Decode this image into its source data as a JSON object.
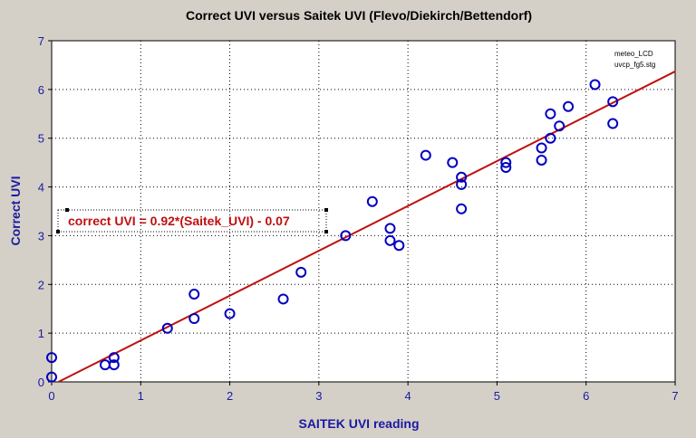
{
  "chart_data": {
    "type": "scatter",
    "title": "Correct UVI versus Saitek UVI (Flevo/Diekirch/Bettendorf)",
    "xlabel": "SAITEK UVI reading",
    "ylabel": "Correct UVI",
    "xlim": [
      0,
      7
    ],
    "ylim": [
      0,
      7
    ],
    "xticks": [
      "0",
      "1",
      "2",
      "3",
      "4",
      "5",
      "6",
      "7"
    ],
    "yticks": [
      "0",
      "1",
      "2",
      "3",
      "4",
      "5",
      "6",
      "7"
    ],
    "grid": true,
    "notes": [
      "meteo_LCD",
      "uvcp_fg5.stg"
    ],
    "equation": "correct UVI = 0.92*(Saitek_UVI) - 0.07",
    "fit": {
      "slope": 0.92,
      "intercept": -0.07
    },
    "marker_color": "#0000c0",
    "line_color": "#c01010",
    "points": [
      {
        "x": 0.0,
        "y": 0.1
      },
      {
        "x": 0.0,
        "y": 0.5
      },
      {
        "x": 0.6,
        "y": 0.35
      },
      {
        "x": 0.7,
        "y": 0.35
      },
      {
        "x": 0.7,
        "y": 0.5
      },
      {
        "x": 1.3,
        "y": 1.1
      },
      {
        "x": 1.6,
        "y": 1.3
      },
      {
        "x": 1.6,
        "y": 1.8
      },
      {
        "x": 2.0,
        "y": 1.4
      },
      {
        "x": 2.6,
        "y": 1.7
      },
      {
        "x": 2.8,
        "y": 2.25
      },
      {
        "x": 3.3,
        "y": 3.0
      },
      {
        "x": 3.6,
        "y": 3.7
      },
      {
        "x": 3.8,
        "y": 3.15
      },
      {
        "x": 3.8,
        "y": 2.9
      },
      {
        "x": 3.9,
        "y": 2.8
      },
      {
        "x": 4.2,
        "y": 4.65
      },
      {
        "x": 4.5,
        "y": 4.5
      },
      {
        "x": 4.6,
        "y": 4.2
      },
      {
        "x": 4.6,
        "y": 4.05
      },
      {
        "x": 4.6,
        "y": 3.55
      },
      {
        "x": 5.1,
        "y": 4.5
      },
      {
        "x": 5.1,
        "y": 4.4
      },
      {
        "x": 5.5,
        "y": 4.8
      },
      {
        "x": 5.5,
        "y": 4.55
      },
      {
        "x": 5.6,
        "y": 5.5
      },
      {
        "x": 5.6,
        "y": 5.0
      },
      {
        "x": 5.7,
        "y": 5.25
      },
      {
        "x": 5.8,
        "y": 5.65
      },
      {
        "x": 6.1,
        "y": 6.1
      },
      {
        "x": 6.3,
        "y": 5.75
      },
      {
        "x": 6.3,
        "y": 5.3
      }
    ]
  }
}
